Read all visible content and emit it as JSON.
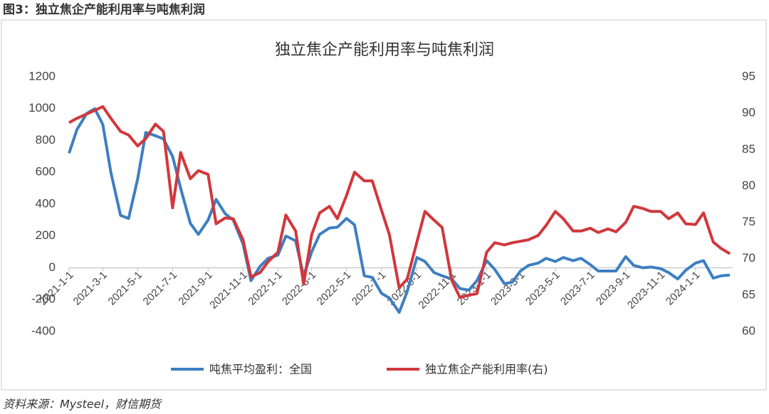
{
  "figure_label": "图3：独立焦企产能利用率与吨焦利润",
  "source": "资料来源：Mysteel，财信期货",
  "chart_data": {
    "type": "line",
    "title": "独立焦企产能利用率与吨焦利润",
    "x": [
      "2021-1-1",
      "2021-1-15",
      "2021-2-1",
      "2021-2-15",
      "2021-3-1",
      "2021-3-15",
      "2021-4-1",
      "2021-4-15",
      "2021-5-1",
      "2021-5-15",
      "2021-6-1",
      "2021-6-15",
      "2021-7-1",
      "2021-7-15",
      "2021-8-1",
      "2021-8-15",
      "2021-9-1",
      "2021-9-15",
      "2021-10-1",
      "2021-10-15",
      "2021-11-1",
      "2021-11-15",
      "2021-12-1",
      "2021-12-15",
      "2022-1-1",
      "2022-1-15",
      "2022-2-1",
      "2022-2-15",
      "2022-3-1",
      "2022-3-15",
      "2022-4-1",
      "2022-4-15",
      "2022-5-1",
      "2022-5-15",
      "2022-6-1",
      "2022-6-15",
      "2022-7-1",
      "2022-7-15",
      "2022-8-1",
      "2022-8-15",
      "2022-9-1",
      "2022-9-15",
      "2022-10-1",
      "2022-10-15",
      "2022-11-1",
      "2022-11-15",
      "2022-12-1",
      "2022-12-15",
      "2023-1-1",
      "2023-1-15",
      "2023-2-1",
      "2023-2-15",
      "2023-3-1",
      "2023-3-15",
      "2023-4-1",
      "2023-4-15",
      "2023-5-1",
      "2023-5-15",
      "2023-6-1",
      "2023-6-15",
      "2023-7-1",
      "2023-7-15",
      "2023-8-1",
      "2023-8-15",
      "2023-9-1",
      "2023-9-15",
      "2023-10-1",
      "2023-10-15",
      "2023-11-1",
      "2023-11-15",
      "2023-12-1",
      "2023-12-15",
      "2024-1-1",
      "2024-1-15",
      "2024-2-1",
      "2024-2-15",
      "2024-3-1"
    ],
    "xlim": [
      "2021-1-1",
      "2024-3-1"
    ],
    "xticks": [
      "2021-1-1",
      "2021-3-1",
      "2021-5-1",
      "2021-7-1",
      "2021-9-1",
      "2021-11-1",
      "2022-1-1",
      "2022-3-1",
      "2022-5-1",
      "2022-7-1",
      "2022-9-1",
      "2022-11-1",
      "2023-1-1",
      "2023-3-1",
      "2023-5-1",
      "2023-7-1",
      "2023-9-1",
      "2023-11-1",
      "2024-1-1"
    ],
    "ylim": [
      -400,
      1200
    ],
    "yticks": [
      -400,
      -200,
      0,
      200,
      400,
      600,
      800,
      1000,
      1200
    ],
    "y2lim": [
      60,
      95
    ],
    "y2ticks": [
      60,
      65,
      70,
      75,
      80,
      85,
      90,
      95
    ],
    "legend": "bottom",
    "series": [
      {
        "name": "吨焦平均盈利：全国",
        "color": "#3d7fc2",
        "values": [
          720,
          870,
          970,
          1000,
          900,
          600,
          330,
          310,
          560,
          850,
          830,
          810,
          700,
          500,
          280,
          210,
          300,
          430,
          340,
          300,
          150,
          -80,
          10,
          60,
          80,
          200,
          170,
          -50,
          100,
          210,
          250,
          255,
          310,
          270,
          -50,
          -60,
          -160,
          -190,
          -280,
          -150,
          65,
          40,
          -30,
          -50,
          -70,
          -130,
          -140,
          -80,
          45,
          -10,
          -100,
          -90,
          -20,
          15,
          30,
          60,
          40,
          65,
          45,
          60,
          20,
          -20,
          -20,
          -20,
          70,
          15,
          0,
          5,
          -5,
          -30,
          -70,
          -15,
          30,
          45,
          -65,
          -50,
          -45
        ]
      },
      {
        "name": "独立焦企产能利用率(右)",
        "color": "#d1373c",
        "axis": "y2",
        "values": [
          88.7,
          89.3,
          89.9,
          90.4,
          90.9,
          89.3,
          87.5,
          87.0,
          85.5,
          86.5,
          88.5,
          87.5,
          77.0,
          84.6,
          81.0,
          82.1,
          81.6,
          74.8,
          75.6,
          75.5,
          72.6,
          67.5,
          68.1,
          69.6,
          70.9,
          76.0,
          73.8,
          66.5,
          73.3,
          76.3,
          77.2,
          75.5,
          78.7,
          81.9,
          80.7,
          80.7,
          76.7,
          73.3,
          66.0,
          67.2,
          72.3,
          76.5,
          75.3,
          74.3,
          67.0,
          64.7,
          65.0,
          65.2,
          70.9,
          72.2,
          71.9,
          72.2,
          72.4,
          72.6,
          73.2,
          74.6,
          76.5,
          75.5,
          73.8,
          73.8,
          74.2,
          73.6,
          74.1,
          73.7,
          75.0,
          77.2,
          76.9,
          76.5,
          76.5,
          75.5,
          76.3,
          74.8,
          74.7,
          76.3,
          72.3,
          71.4,
          70.7
        ]
      }
    ]
  }
}
